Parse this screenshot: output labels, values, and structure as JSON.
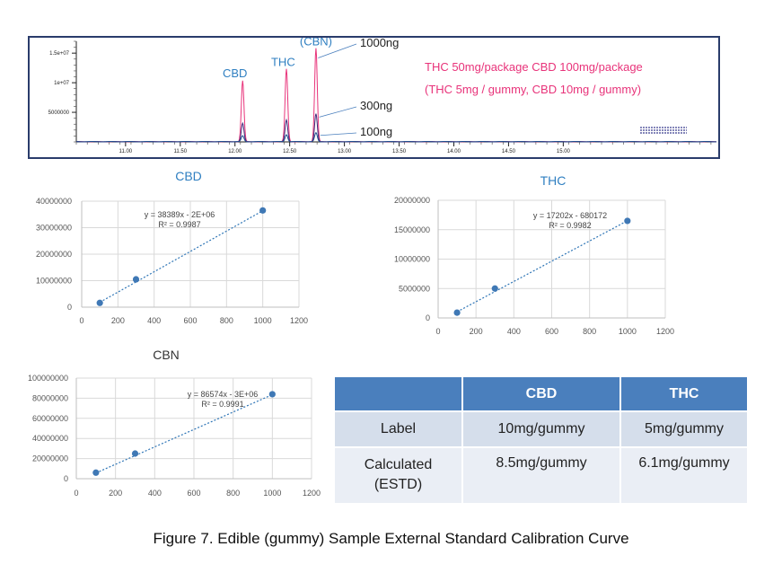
{
  "chart_data": [
    {
      "type": "line",
      "name": "chromatogram",
      "xlim": [
        10.55,
        16.4
      ],
      "ylim": [
        0,
        17000000
      ],
      "x_ticks": [
        "11.00",
        "11.50",
        "12.00",
        "12.50",
        "13.00",
        "13.50",
        "14.00",
        "14.50",
        "15.00"
      ],
      "x_tick_values": [
        11.0,
        11.5,
        12.0,
        12.5,
        13.0,
        13.5,
        14.0,
        14.5,
        15.0
      ],
      "y_ticks": [
        "1.5e+07",
        "1e+07",
        "5000000"
      ],
      "y_tick_values": [
        15000000,
        10000000,
        5000000
      ],
      "series": [
        {
          "name": "1000ng",
          "color": "#e8337a",
          "peaks": [
            {
              "rt": 12.07,
              "height": 10300000
            },
            {
              "rt": 12.47,
              "height": 12300000
            },
            {
              "rt": 12.74,
              "height": 15800000
            }
          ]
        },
        {
          "name": "300ng",
          "color": "#3d2a7a",
          "peaks": [
            {
              "rt": 12.07,
              "height": 3100000
            },
            {
              "rt": 12.47,
              "height": 3700000
            },
            {
              "rt": 12.74,
              "height": 4700000
            }
          ]
        },
        {
          "name": "100ng",
          "color": "#1f4f8f",
          "peaks": [
            {
              "rt": 12.07,
              "height": 1000000
            },
            {
              "rt": 12.47,
              "height": 1200000
            },
            {
              "rt": 12.74,
              "height": 1500000
            }
          ]
        }
      ],
      "peak_labels": [
        {
          "text": "CBD",
          "rt": 12.0,
          "level": 10900000
        },
        {
          "text": "THC",
          "rt": 12.44,
          "level": 12800000
        },
        {
          "text": "(CBN)",
          "rt": 12.74,
          "level": 16300000
        }
      ],
      "annotations": [
        "THC 50mg/package CBD 100mg/package",
        "(THC 5mg / gummy, CBD 10mg / gummy)"
      ]
    },
    {
      "type": "scatter",
      "title": "CBD",
      "x": [
        100,
        300,
        1000
      ],
      "y": [
        1600000,
        10500000,
        36500000
      ],
      "xlim": [
        0,
        1200
      ],
      "ylim": [
        0,
        40000000
      ],
      "x_ticks": [
        "0",
        "200",
        "400",
        "600",
        "800",
        "1000",
        "1200"
      ],
      "x_tick_values": [
        0,
        200,
        400,
        600,
        800,
        1000,
        1200
      ],
      "y_ticks": [
        "0",
        "10000000",
        "20000000",
        "30000000",
        "40000000"
      ],
      "y_tick_values": [
        0,
        10000000,
        20000000,
        30000000,
        40000000
      ],
      "trend_slope": 38389,
      "trend_intercept": -2000000,
      "equation": "y = 38389x - 2E+06",
      "r2": "R² = 0.9987",
      "grid": true
    },
    {
      "type": "scatter",
      "title": "THC",
      "x": [
        100,
        300,
        1000
      ],
      "y": [
        900000,
        5000000,
        16500000
      ],
      "xlim": [
        0,
        1200
      ],
      "ylim": [
        0,
        20000000
      ],
      "x_ticks": [
        "0",
        "200",
        "400",
        "600",
        "800",
        "1000",
        "1200"
      ],
      "x_tick_values": [
        0,
        200,
        400,
        600,
        800,
        1000,
        1200
      ],
      "y_ticks": [
        "0",
        "5000000",
        "10000000",
        "15000000",
        "20000000"
      ],
      "y_tick_values": [
        0,
        5000000,
        10000000,
        15000000,
        20000000
      ],
      "trend_slope": 17202,
      "trend_intercept": -680172,
      "equation": "y = 17202x - 680172",
      "r2": "R² = 0.9982",
      "grid": true
    },
    {
      "type": "scatter",
      "title": "CBN",
      "x": [
        100,
        300,
        1000
      ],
      "y": [
        6000000,
        25000000,
        84000000
      ],
      "xlim": [
        0,
        1200
      ],
      "ylim": [
        0,
        100000000
      ],
      "x_ticks": [
        "0",
        "200",
        "400",
        "600",
        "800",
        "1000",
        "1200"
      ],
      "x_tick_values": [
        0,
        200,
        400,
        600,
        800,
        1000,
        1200
      ],
      "y_ticks": [
        "0",
        "20000000",
        "40000000",
        "60000000",
        "80000000",
        "100000000"
      ],
      "y_tick_values": [
        0,
        20000000,
        40000000,
        60000000,
        80000000,
        100000000
      ],
      "trend_slope": 86574,
      "trend_intercept": -3000000,
      "equation": "y = 86574x - 3E+06",
      "r2": "R² = 0.9991",
      "grid": true
    },
    {
      "type": "table",
      "headers": [
        "",
        "CBD",
        "THC"
      ],
      "rows": [
        [
          "Label",
          "10mg/gummy",
          "5mg/gummy"
        ],
        [
          "Calculated\n(ESTD)",
          "8.5mg/gummy",
          "6.1mg/gummy"
        ]
      ]
    }
  ],
  "colors": {
    "accent": "#2f7fc1",
    "header": "#4a7fbd",
    "trend": "#2e75b6",
    "point": "#3f78b5",
    "annotation": "#e8337a"
  },
  "caption": "Figure 7. Edible (gummy) Sample External Standard Calibration Curve"
}
